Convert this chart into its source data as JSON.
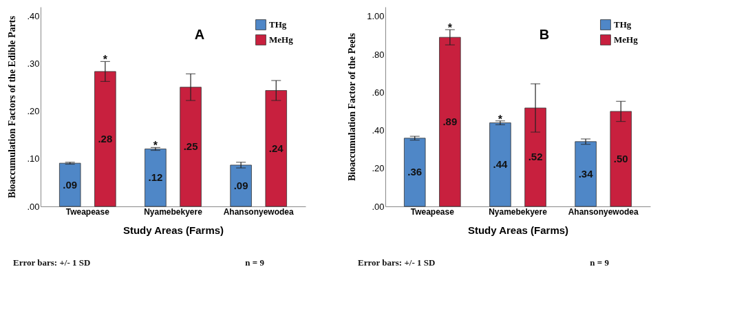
{
  "chart_data": [
    {
      "type": "bar",
      "title": "A",
      "xlabel": "Study Areas (Farms)",
      "ylabel": "Bioaccumulation Factors of the Edible Parts",
      "categories": [
        "Tweapease",
        "Nyamebekyere",
        "Ahansonyewodea"
      ],
      "series": [
        {
          "name": "THg",
          "color": "#4f87c7",
          "values": [
            0.091,
            0.121,
            0.087
          ],
          "errors": [
            0.002,
            0.003,
            0.006
          ],
          "value_labels": [
            ".09",
            ".12",
            ".09"
          ]
        },
        {
          "name": "MeHg",
          "color": "#c8203e",
          "values": [
            0.284,
            0.251,
            0.244
          ],
          "errors": [
            0.021,
            0.028,
            0.021
          ],
          "value_labels": [
            ".28",
            ".25",
            ".24"
          ]
        }
      ],
      "ylim": [
        0,
        0.42
      ],
      "yticks": [
        {
          "value": 0,
          "label": ".00"
        },
        {
          "value": 0.1,
          "label": ".10"
        },
        {
          "value": 0.2,
          "label": ".20"
        },
        {
          "value": 0.3,
          "label": ".30"
        },
        {
          "value": 0.4,
          "label": ".40"
        }
      ],
      "legend": "top right",
      "grid": false,
      "annotations": [
        "*",
        "*",
        "Error bars: +/- 1 SD",
        "n = 9"
      ]
    },
    {
      "type": "bar",
      "title": "B",
      "xlabel": "Study Areas (Farms)",
      "ylabel": "Bioaccumulation Factor of the Peels",
      "categories": [
        "Tweapease",
        "Nyamebekyere",
        "Ahansonyewodea"
      ],
      "series": [
        {
          "name": "THg",
          "color": "#4f87c7",
          "values": [
            0.359,
            0.44,
            0.341
          ],
          "errors": [
            0.01,
            0.01,
            0.014
          ],
          "value_labels": [
            ".36",
            ".44",
            ".34"
          ]
        },
        {
          "name": "MeHg",
          "color": "#c8203e",
          "values": [
            0.89,
            0.518,
            0.5
          ],
          "errors": [
            0.04,
            0.127,
            0.053
          ],
          "value_labels": [
            ".89",
            ".52",
            ".50"
          ]
        }
      ],
      "ylim": [
        0,
        1.05
      ],
      "yticks": [
        {
          "value": 0,
          "label": ".00"
        },
        {
          "value": 0.2,
          "label": ".20"
        },
        {
          "value": 0.4,
          "label": ".40"
        },
        {
          "value": 0.6,
          "label": ".60"
        },
        {
          "value": 0.8,
          "label": ".80"
        },
        {
          "value": 1.0,
          "label": "1.00"
        }
      ],
      "legend": "top right",
      "grid": false,
      "annotations": [
        "*",
        "*",
        "Error bars: +/- 1 SD",
        "n = 9"
      ]
    }
  ]
}
